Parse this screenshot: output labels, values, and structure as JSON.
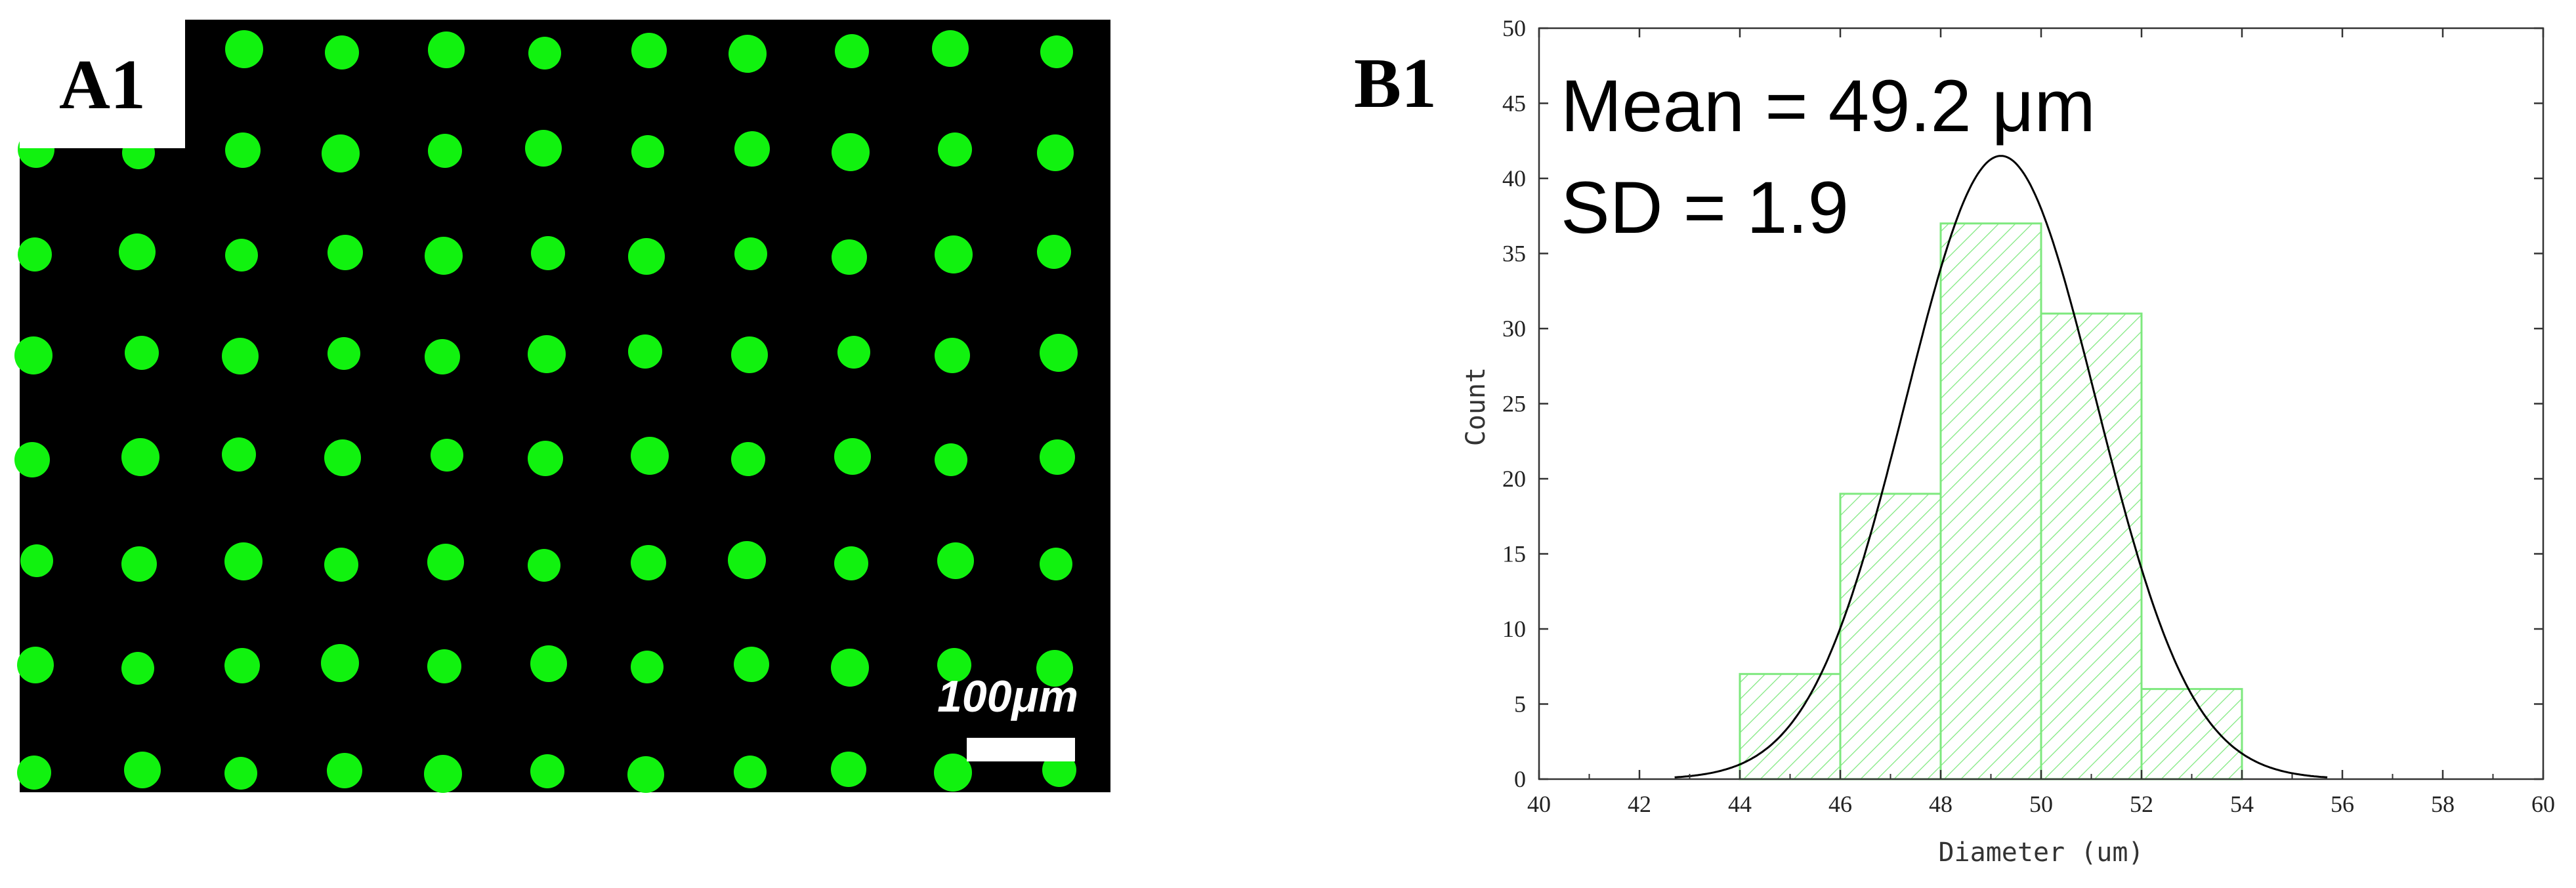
{
  "panel_a": {
    "label": "A1",
    "scale_bar_label": "100μm",
    "dot_color": "#11f20f",
    "background_color": "#000000"
  },
  "panel_b": {
    "label": "B1"
  },
  "chart_data": {
    "type": "bar",
    "title": "",
    "xlabel": "Diameter (um)",
    "ylabel": "Count",
    "xlim": [
      40,
      60
    ],
    "ylim": [
      0,
      50
    ],
    "x_ticks": [
      40,
      42,
      44,
      46,
      48,
      50,
      52,
      54,
      56,
      58,
      60
    ],
    "y_ticks": [
      0,
      5,
      10,
      15,
      20,
      25,
      30,
      35,
      40,
      45,
      50
    ],
    "bins": [
      {
        "start": 44,
        "end": 46,
        "count": 7
      },
      {
        "start": 46,
        "end": 48,
        "count": 19
      },
      {
        "start": 48,
        "end": 50,
        "count": 37
      },
      {
        "start": 50,
        "end": 52,
        "count": 31
      },
      {
        "start": 52,
        "end": 54,
        "count": 6
      }
    ],
    "fit_curve": {
      "type": "gaussian",
      "mean": 49.2,
      "sd": 1.9,
      "peak": 41.5
    },
    "annotations": {
      "mean": "Mean = 49.2 μm",
      "sd": "SD = 1.9"
    },
    "colors": {
      "bar": "#7ee87e",
      "curve": "#000000",
      "axis": "#333333"
    }
  }
}
